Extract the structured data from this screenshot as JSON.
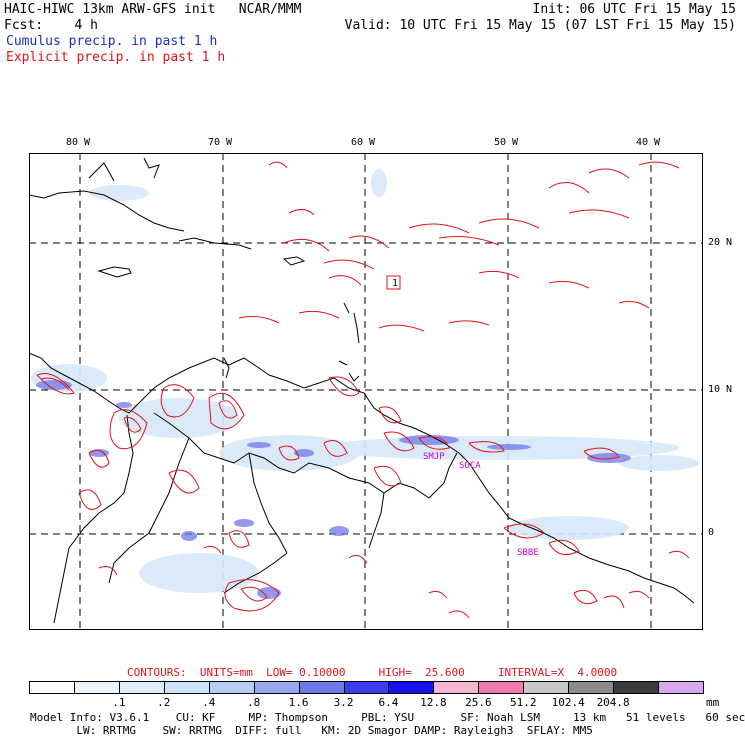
{
  "header": {
    "title": "HAIC-HIWC 13km ARW-GFS init   NCAR/MMM",
    "init": "Init: 06 UTC Fri 15 May 15",
    "fcst": "Fcst:    4 h",
    "valid": "Valid: 10 UTC Fri 15 May 15 (07 LST Fri 15 May 15)",
    "legend_cumulus": "Cumulus precip. in past 1 h",
    "legend_explicit": "Explicit precip. in past 1 h"
  },
  "colors": {
    "cumulus": "#1a2fc9",
    "explicit": "#e0141a",
    "station": "#cc00cc"
  },
  "map": {
    "lon_labels": [
      "80 W",
      "70 W",
      "60 W",
      "50 W",
      "40 W"
    ],
    "lat_labels": [
      "20 N",
      "10 N",
      "0"
    ],
    "stations": [
      "SMJP",
      "SOCA",
      "SBBE"
    ],
    "marker": "1"
  },
  "contours": {
    "label": "CONTOURS:  UNITS=mm  LOW= 0.10000     HIGH=  25.600     INTERVAL=X  4.0000"
  },
  "colorbar": {
    "labels": [
      ".1",
      ".2",
      ".4",
      ".8",
      "1.6",
      "3.2",
      "6.4",
      "12.8",
      "25.6",
      "51.2",
      "102.4",
      "204.8"
    ],
    "unit": "mm",
    "colors": [
      "#ffffff",
      "#eef6fc",
      "#dfeef9",
      "#cde4f6",
      "#b8cdf3",
      "#9aa6ee",
      "#6f78ea",
      "#3b3bf0",
      "#1a10ee",
      "#f6b7d4",
      "#f07bb0",
      "#c8c8c8",
      "#8c8c8c",
      "#3c3c3c",
      "#d7a7f2"
    ]
  },
  "footer": {
    "line1": "Model Info: V3.6.1    CU: KF     MP: Thompson     PBL: YSU       SF: Noah LSM     13 km   51 levels   60 sec",
    "line2": "       LW: RRTMG    SW: RRTMG  DIFF: full   KM: 2D Smagor DAMP: Rayleigh3  SFLAY: MM5"
  }
}
